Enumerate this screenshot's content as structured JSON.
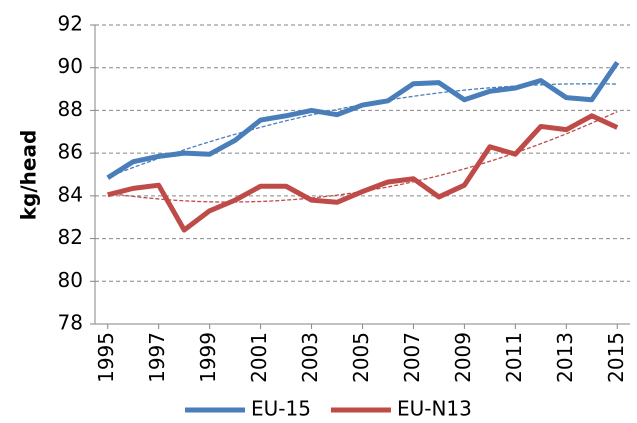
{
  "chart_data": {
    "type": "line",
    "y_label": "kg/head",
    "x": [
      1995,
      1996,
      1997,
      1998,
      1999,
      2000,
      2001,
      2002,
      2003,
      2004,
      2005,
      2006,
      2007,
      2008,
      2009,
      2010,
      2011,
      2012,
      2013,
      2014,
      2015
    ],
    "series": [
      {
        "name": "EU-15",
        "color": "#4a7ebb",
        "values": [
          84.85,
          85.6,
          85.85,
          86.0,
          85.95,
          86.6,
          87.55,
          87.75,
          88.0,
          87.8,
          88.25,
          88.45,
          89.25,
          89.3,
          88.5,
          88.9,
          89.05,
          89.4,
          88.6,
          88.5,
          90.25
        ]
      },
      {
        "name": "EU-N13",
        "color": "#be4b48",
        "values": [
          84.05,
          84.35,
          84.5,
          82.4,
          83.3,
          83.8,
          84.45,
          84.45,
          83.8,
          83.7,
          84.2,
          84.65,
          84.8,
          83.95,
          84.5,
          86.3,
          85.95,
          87.25,
          87.1,
          87.75,
          87.2
        ]
      }
    ],
    "xlim": [
      1994.5,
      2015.5
    ],
    "xticks": [
      1995,
      1997,
      1999,
      2001,
      2003,
      2005,
      2007,
      2009,
      2011,
      2013,
      2015
    ],
    "ylim": [
      78,
      92
    ],
    "yticks": [
      78,
      80,
      82,
      84,
      86,
      88,
      90,
      92
    ],
    "grid": true,
    "trendline": "polynomial",
    "legend": "bottom"
  }
}
